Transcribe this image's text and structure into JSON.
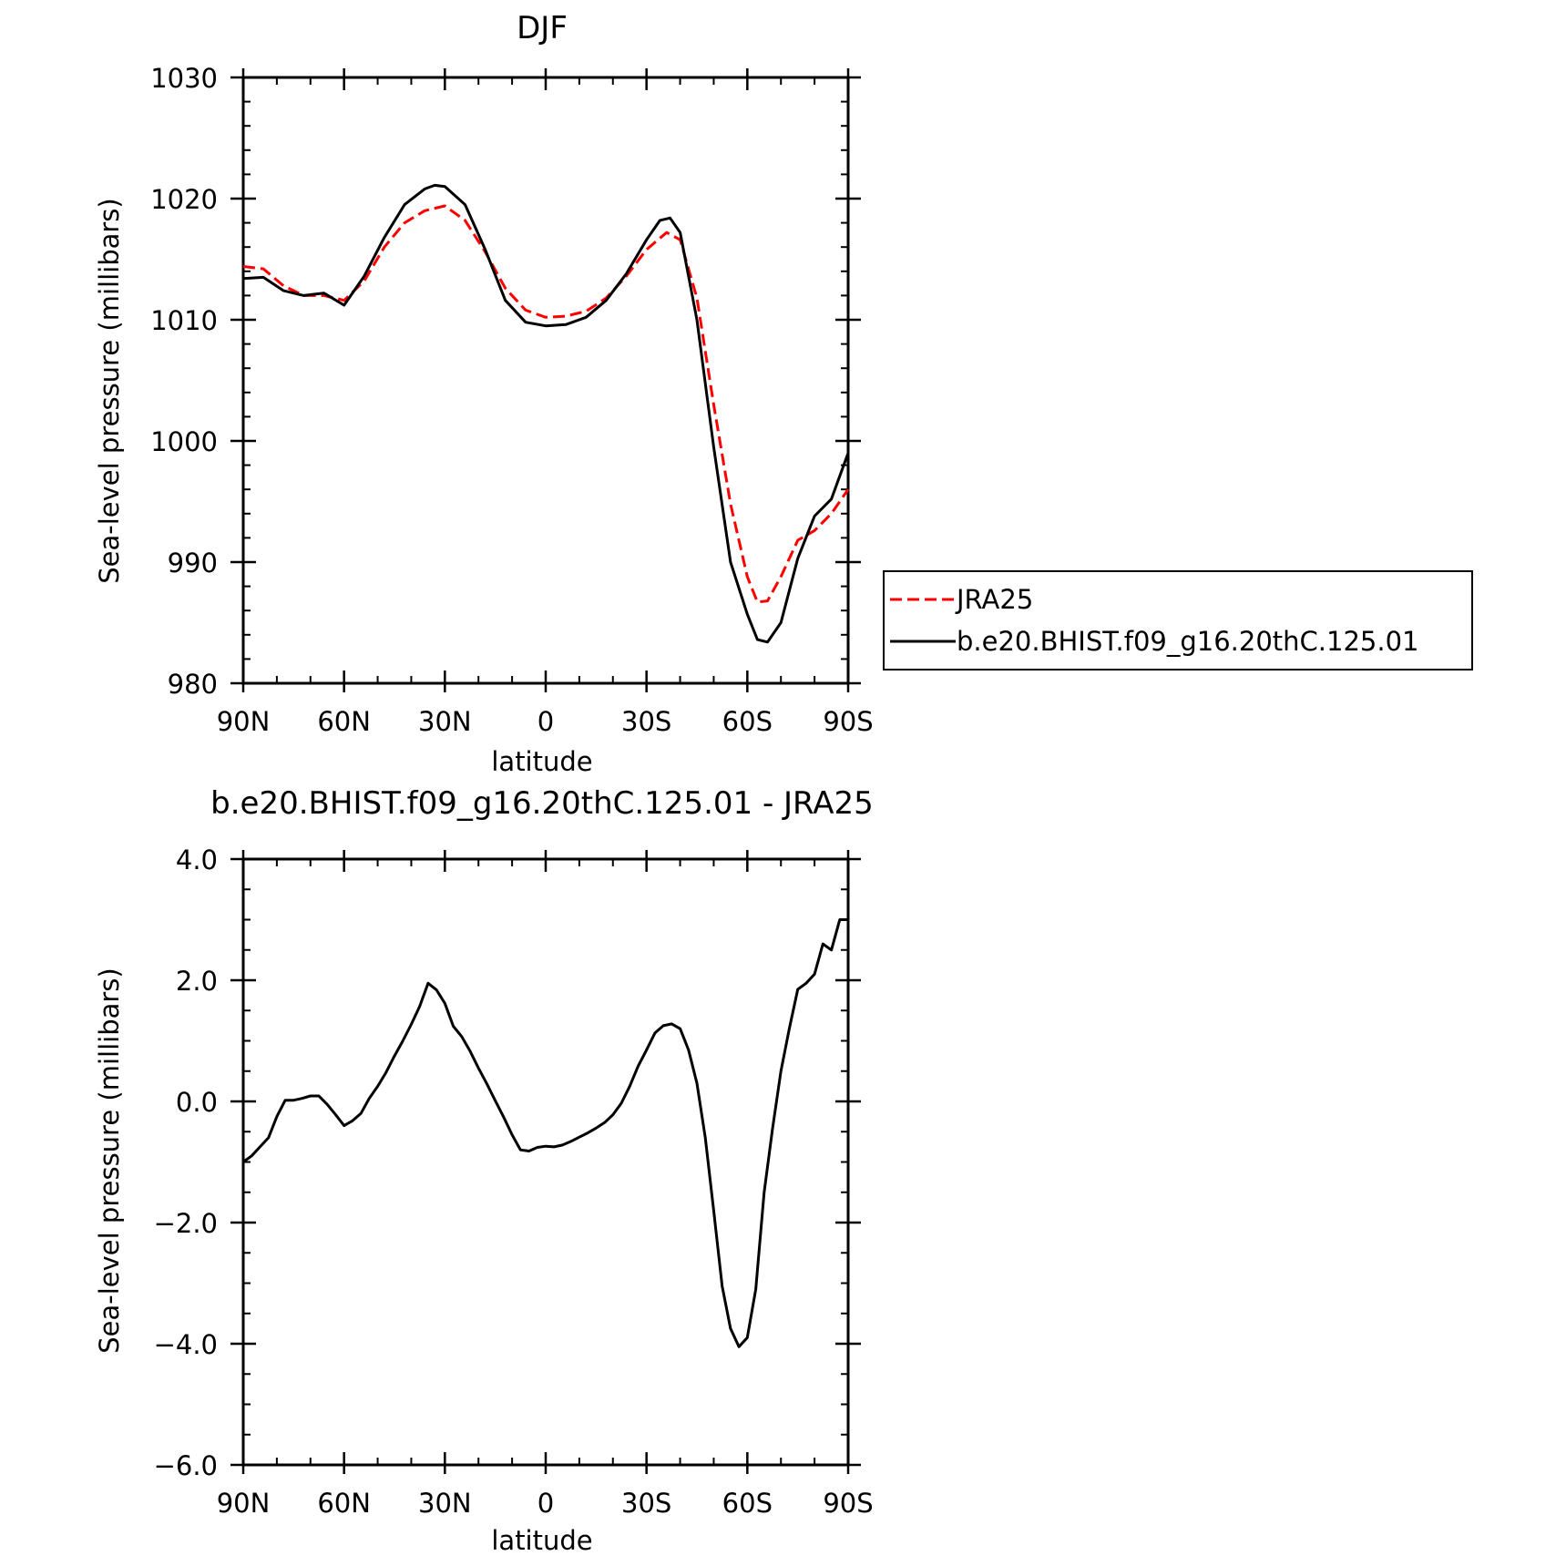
{
  "colors": {
    "jra25": "#ff0000",
    "model": "#000000",
    "axis": "#000000",
    "background": "#ffffff"
  },
  "chart_data": [
    {
      "type": "line",
      "title": "DJF",
      "xlabel": "latitude",
      "ylabel": "Sea-level pressure (millibars)",
      "xlim": [
        90,
        -90
      ],
      "ylim": [
        980,
        1030
      ],
      "xticks": [
        {
          "v": 90,
          "label": "90N"
        },
        {
          "v": 60,
          "label": "60N"
        },
        {
          "v": 30,
          "label": "30N"
        },
        {
          "v": 0,
          "label": "0"
        },
        {
          "v": -30,
          "label": "30S"
        },
        {
          "v": -60,
          "label": "60S"
        },
        {
          "v": -90,
          "label": "90S"
        }
      ],
      "yticks": [
        {
          "v": 980,
          "label": "980"
        },
        {
          "v": 990,
          "label": "990"
        },
        {
          "v": 1000,
          "label": "1000"
        },
        {
          "v": 1010,
          "label": "1010"
        },
        {
          "v": 1020,
          "label": "1020"
        },
        {
          "v": 1030,
          "label": "1030"
        }
      ],
      "legend": {
        "position": "right"
      },
      "series": [
        {
          "name": "JRA25",
          "style": "dashed",
          "color": "#ff0000",
          "x": [
            90,
            84,
            78,
            72,
            66,
            60,
            54,
            48,
            42,
            36,
            30,
            24,
            18,
            12,
            6,
            0,
            -6,
            -12,
            -18,
            -24,
            -30,
            -36,
            -40,
            -45,
            -50,
            -55,
            -60,
            -63,
            -66,
            -70,
            -75,
            -80,
            -85,
            -90
          ],
          "y": [
            1014.4,
            1014.2,
            1012.8,
            1012.0,
            1012.0,
            1011.6,
            1013.2,
            1016.0,
            1018.0,
            1019.0,
            1019.4,
            1018.2,
            1015.6,
            1012.6,
            1010.8,
            1010.2,
            1010.3,
            1010.7,
            1011.8,
            1013.6,
            1015.8,
            1017.2,
            1016.6,
            1011.8,
            1003.0,
            994.8,
            988.8,
            986.7,
            986.8,
            988.8,
            991.8,
            992.6,
            994.0,
            996.0
          ]
        },
        {
          "name": "b.e20.BHIST.f09_g16.20thC.125.01",
          "style": "solid",
          "color": "#000000",
          "x": [
            90,
            84,
            78,
            72,
            66,
            60,
            54,
            48,
            42,
            36,
            33,
            30,
            24,
            18,
            12,
            6,
            0,
            -6,
            -12,
            -18,
            -24,
            -30,
            -34,
            -37,
            -40,
            -45,
            -50,
            -55,
            -60,
            -63,
            -66,
            -70,
            -75,
            -80,
            -85,
            -90
          ],
          "y": [
            1013.4,
            1013.5,
            1012.4,
            1012.0,
            1012.2,
            1011.2,
            1013.6,
            1016.8,
            1019.5,
            1020.8,
            1021.1,
            1021.0,
            1019.5,
            1015.8,
            1011.6,
            1009.8,
            1009.5,
            1009.6,
            1010.2,
            1011.6,
            1013.8,
            1016.6,
            1018.2,
            1018.4,
            1017.2,
            1010.0,
            999.5,
            990.0,
            985.7,
            983.6,
            983.4,
            985.0,
            990.3,
            993.8,
            995.2,
            999.0
          ]
        }
      ]
    },
    {
      "type": "line",
      "title": "b.e20.BHIST.f09_g16.20thC.125.01 - JRA25",
      "xlabel": "latitude",
      "ylabel": "Sea-level pressure (millibars)",
      "xlim": [
        90,
        -90
      ],
      "ylim": [
        -6,
        4
      ],
      "xticks": [
        {
          "v": 90,
          "label": "90N"
        },
        {
          "v": 60,
          "label": "60N"
        },
        {
          "v": 30,
          "label": "30N"
        },
        {
          "v": 0,
          "label": "0"
        },
        {
          "v": -30,
          "label": "30S"
        },
        {
          "v": -60,
          "label": "60S"
        },
        {
          "v": -90,
          "label": "90S"
        }
      ],
      "yticks": [
        {
          "v": -6,
          "label": "−6.0"
        },
        {
          "v": -4,
          "label": "−4.0"
        },
        {
          "v": -2,
          "label": "−2.0"
        },
        {
          "v": 0,
          "label": "0.0"
        },
        {
          "v": 2,
          "label": "2.0"
        },
        {
          "v": 4,
          "label": "4.0"
        }
      ],
      "series": [
        {
          "style": "solid",
          "color": "#000000",
          "x": [
            90,
            87.5,
            85,
            82.5,
            80,
            77.5,
            75,
            72.5,
            70,
            67.5,
            65,
            62.5,
            60,
            57.5,
            55,
            52.5,
            50,
            47.5,
            45,
            42.5,
            40,
            37.5,
            35,
            32.5,
            30,
            27.5,
            25,
            22.5,
            20,
            17.5,
            15,
            12.5,
            10,
            7.5,
            5,
            2.5,
            0,
            -2.5,
            -5,
            -7.5,
            -10,
            -12.5,
            -15,
            -17.5,
            -20,
            -22.5,
            -25,
            -27.5,
            -30,
            -32.5,
            -35,
            -37.5,
            -40,
            -42.5,
            -45,
            -47.5,
            -50,
            -52.5,
            -55,
            -57.5,
            -60,
            -62.5,
            -65,
            -67.5,
            -70,
            -72.5,
            -75,
            -77.5,
            -80,
            -82.5,
            -85,
            -87.5,
            -90
          ],
          "y": [
            -1.0,
            -0.9,
            -0.75,
            -0.6,
            -0.25,
            0.02,
            0.02,
            0.05,
            0.09,
            0.09,
            -0.05,
            -0.22,
            -0.4,
            -0.32,
            -0.2,
            0.05,
            0.25,
            0.48,
            0.75,
            1.0,
            1.27,
            1.57,
            1.95,
            1.84,
            1.62,
            1.24,
            1.07,
            0.83,
            0.55,
            0.29,
            0.01,
            -0.26,
            -0.55,
            -0.8,
            -0.82,
            -0.76,
            -0.74,
            -0.75,
            -0.72,
            -0.66,
            -0.59,
            -0.52,
            -0.44,
            -0.35,
            -0.22,
            -0.03,
            0.25,
            0.58,
            0.85,
            1.13,
            1.25,
            1.28,
            1.2,
            0.85,
            0.3,
            -0.6,
            -1.8,
            -3.05,
            -3.75,
            -4.05,
            -3.9,
            -3.1,
            -1.5,
            -0.45,
            0.5,
            1.2,
            1.85,
            1.95,
            2.1,
            2.6,
            2.5,
            3.0,
            3.0
          ]
        }
      ]
    }
  ]
}
